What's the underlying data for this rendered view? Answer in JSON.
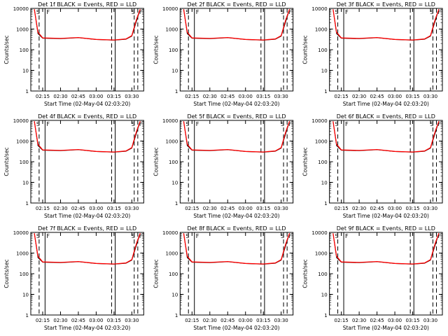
{
  "figure": {
    "ylabel": "Counts/sec",
    "xlabel": "Start Time (02-May-04 02:03:20)",
    "x_ticks": [
      "02:15",
      "02:30",
      "02:45",
      "03:00",
      "03:15",
      "03:30"
    ],
    "y_ticks": [
      "1",
      "10",
      "100",
      "1000",
      "10000"
    ],
    "marker_labels": [
      "S",
      "F",
      "S",
      "F"
    ]
  },
  "chart_data": [
    {
      "type": "line",
      "title": "Det 1f BLACK = Events, RED = LLD",
      "xlabel": "Start Time (02-May-04 02:03:20)",
      "ylabel": "Counts/sec",
      "ylog": true,
      "ylim": [
        1,
        10000
      ],
      "xlim": [
        "02:05",
        "03:40"
      ],
      "x": [
        "02:08",
        "02:11",
        "02:15",
        "02:30",
        "02:45",
        "03:00",
        "03:15",
        "03:25",
        "03:30",
        "03:34",
        "03:37"
      ],
      "series": [
        {
          "name": "Events",
          "color": "#000000",
          "values": [
            9000,
            600,
            360,
            340,
            380,
            310,
            290,
            320,
            450,
            2500,
            9000
          ]
        },
        {
          "name": "LLD",
          "color": "#ff0000",
          "values": [
            9000,
            700,
            370,
            350,
            390,
            315,
            295,
            330,
            480,
            3000,
            9000
          ]
        }
      ],
      "markers": {
        "solid": [
          "02:17",
          "03:16"
        ],
        "dashed": [
          "02:12",
          "03:13",
          "03:32",
          "03:35"
        ]
      }
    },
    {
      "type": "line",
      "title": "Det 2f BLACK = Events, RED = LLD",
      "xlabel": "Start Time (02-May-04 02:03:20)",
      "ylabel": "Counts/sec",
      "ylog": true,
      "ylim": [
        1,
        10000
      ],
      "xlim": [
        "02:05",
        "03:40"
      ],
      "x": [
        "02:08",
        "02:11",
        "02:15",
        "02:30",
        "02:45",
        "03:00",
        "03:15",
        "03:25",
        "03:30",
        "03:34",
        "03:37"
      ],
      "series": [
        {
          "name": "Events",
          "color": "#000000",
          "values": [
            9000,
            600,
            360,
            340,
            380,
            310,
            290,
            320,
            450,
            2500,
            9000
          ]
        },
        {
          "name": "LLD",
          "color": "#ff0000",
          "values": [
            9000,
            700,
            370,
            350,
            390,
            315,
            295,
            330,
            480,
            3000,
            9000
          ]
        }
      ],
      "markers": {
        "solid": [
          "02:17",
          "03:16"
        ],
        "dashed": [
          "02:12",
          "03:13",
          "03:32",
          "03:35"
        ]
      }
    },
    {
      "type": "line",
      "title": "Det 3f BLACK = Events, RED = LLD",
      "xlabel": "Start Time (02-May-04 02:03:20)",
      "ylabel": "Counts/sec",
      "ylog": true,
      "ylim": [
        1,
        10000
      ],
      "xlim": [
        "02:05",
        "03:40"
      ],
      "x": [
        "02:08",
        "02:11",
        "02:15",
        "02:30",
        "02:45",
        "03:00",
        "03:15",
        "03:25",
        "03:30",
        "03:34",
        "03:37"
      ],
      "series": [
        {
          "name": "Events",
          "color": "#000000",
          "values": [
            9000,
            600,
            360,
            340,
            380,
            310,
            290,
            320,
            450,
            2500,
            9000
          ]
        },
        {
          "name": "LLD",
          "color": "#ff0000",
          "values": [
            9000,
            700,
            370,
            350,
            390,
            315,
            295,
            330,
            480,
            3000,
            9000
          ]
        }
      ],
      "markers": {
        "solid": [
          "02:17",
          "03:16"
        ],
        "dashed": [
          "02:12",
          "03:13",
          "03:32",
          "03:35"
        ]
      }
    },
    {
      "type": "line",
      "title": "Det 4f BLACK = Events, RED = LLD",
      "xlabel": "Start Time (02-May-04 02:03:20)",
      "ylabel": "Counts/sec",
      "ylog": true,
      "ylim": [
        1,
        10000
      ],
      "xlim": [
        "02:05",
        "03:40"
      ],
      "x": [
        "02:08",
        "02:11",
        "02:15",
        "02:30",
        "02:45",
        "03:00",
        "03:15",
        "03:25",
        "03:30",
        "03:34",
        "03:37"
      ],
      "series": [
        {
          "name": "Events",
          "color": "#000000",
          "values": [
            9000,
            600,
            360,
            340,
            380,
            310,
            290,
            320,
            450,
            2500,
            9000
          ]
        },
        {
          "name": "LLD",
          "color": "#ff0000",
          "values": [
            9000,
            700,
            370,
            350,
            390,
            315,
            295,
            330,
            480,
            3000,
            9000
          ]
        }
      ],
      "markers": {
        "solid": [
          "02:17",
          "03:16"
        ],
        "dashed": [
          "02:12",
          "03:13",
          "03:32",
          "03:35"
        ]
      }
    },
    {
      "type": "line",
      "title": "Det 5f BLACK = Events, RED = LLD",
      "xlabel": "Start Time (02-May-04 02:03:20)",
      "ylabel": "Counts/sec",
      "ylog": true,
      "ylim": [
        1,
        10000
      ],
      "xlim": [
        "02:05",
        "03:40"
      ],
      "x": [
        "02:08",
        "02:11",
        "02:15",
        "02:30",
        "02:45",
        "03:00",
        "03:15",
        "03:25",
        "03:30",
        "03:34",
        "03:37"
      ],
      "series": [
        {
          "name": "Events",
          "color": "#000000",
          "values": [
            9000,
            600,
            360,
            340,
            380,
            310,
            290,
            320,
            450,
            2500,
            9000
          ]
        },
        {
          "name": "LLD",
          "color": "#ff0000",
          "values": [
            9000,
            700,
            370,
            350,
            390,
            315,
            295,
            330,
            480,
            3000,
            9000
          ]
        }
      ],
      "markers": {
        "solid": [
          "02:17",
          "03:16"
        ],
        "dashed": [
          "02:12",
          "03:13",
          "03:32",
          "03:35"
        ]
      }
    },
    {
      "type": "line",
      "title": "Det 6f BLACK = Events, RED = LLD",
      "xlabel": "Start Time (02-May-04 02:03:20)",
      "ylabel": "Counts/sec",
      "ylog": true,
      "ylim": [
        1,
        10000
      ],
      "xlim": [
        "02:05",
        "03:40"
      ],
      "x": [
        "02:08",
        "02:11",
        "02:15",
        "02:30",
        "02:45",
        "03:00",
        "03:15",
        "03:25",
        "03:30",
        "03:34",
        "03:37"
      ],
      "series": [
        {
          "name": "Events",
          "color": "#000000",
          "values": [
            9000,
            600,
            360,
            340,
            380,
            310,
            290,
            320,
            450,
            2500,
            9000
          ]
        },
        {
          "name": "LLD",
          "color": "#ff0000",
          "values": [
            9000,
            700,
            370,
            350,
            390,
            315,
            295,
            330,
            480,
            3000,
            9000
          ]
        }
      ],
      "markers": {
        "solid": [
          "02:17",
          "03:16"
        ],
        "dashed": [
          "02:12",
          "03:13",
          "03:32",
          "03:35"
        ]
      }
    },
    {
      "type": "line",
      "title": "Det 7f BLACK = Events, RED = LLD",
      "xlabel": "Start Time (02-May-04 02:03:20)",
      "ylabel": "Counts/sec",
      "ylog": true,
      "ylim": [
        1,
        10000
      ],
      "xlim": [
        "02:05",
        "03:40"
      ],
      "x": [
        "02:08",
        "02:11",
        "02:15",
        "02:30",
        "02:45",
        "03:00",
        "03:15",
        "03:25",
        "03:30",
        "03:34",
        "03:37"
      ],
      "series": [
        {
          "name": "Events",
          "color": "#000000",
          "values": [
            9000,
            600,
            360,
            340,
            380,
            310,
            290,
            320,
            450,
            2500,
            9000
          ]
        },
        {
          "name": "LLD",
          "color": "#ff0000",
          "values": [
            9000,
            700,
            370,
            350,
            390,
            315,
            295,
            330,
            480,
            3000,
            9000
          ]
        }
      ],
      "markers": {
        "solid": [
          "02:17",
          "03:16"
        ],
        "dashed": [
          "02:12",
          "03:13",
          "03:32",
          "03:35"
        ]
      }
    },
    {
      "type": "line",
      "title": "Det 8f BLACK = Events, RED = LLD",
      "xlabel": "Start Time (02-May-04 02:03:20)",
      "ylabel": "Counts/sec",
      "ylog": true,
      "ylim": [
        1,
        10000
      ],
      "xlim": [
        "02:05",
        "03:40"
      ],
      "x": [
        "02:08",
        "02:11",
        "02:15",
        "02:30",
        "02:45",
        "03:00",
        "03:15",
        "03:25",
        "03:30",
        "03:34",
        "03:37"
      ],
      "series": [
        {
          "name": "Events",
          "color": "#000000",
          "values": [
            9000,
            600,
            360,
            340,
            380,
            310,
            290,
            320,
            450,
            2500,
            9000
          ]
        },
        {
          "name": "LLD",
          "color": "#ff0000",
          "values": [
            9000,
            700,
            370,
            350,
            390,
            315,
            295,
            330,
            480,
            3000,
            9000
          ]
        }
      ],
      "markers": {
        "solid": [
          "02:17",
          "03:16"
        ],
        "dashed": [
          "02:12",
          "03:13",
          "03:32",
          "03:35"
        ]
      }
    },
    {
      "type": "line",
      "title": "Det 9f BLACK = Events, RED = LLD",
      "xlabel": "Start Time (02-May-04 02:03:20)",
      "ylabel": "Counts/sec",
      "ylog": true,
      "ylim": [
        1,
        10000
      ],
      "xlim": [
        "02:05",
        "03:40"
      ],
      "x": [
        "02:08",
        "02:11",
        "02:15",
        "02:30",
        "02:45",
        "03:00",
        "03:15",
        "03:25",
        "03:30",
        "03:34",
        "03:37"
      ],
      "series": [
        {
          "name": "Events",
          "color": "#000000",
          "values": [
            9000,
            600,
            360,
            340,
            380,
            310,
            290,
            320,
            450,
            2500,
            9000
          ]
        },
        {
          "name": "LLD",
          "color": "#ff0000",
          "values": [
            9000,
            700,
            370,
            350,
            390,
            315,
            295,
            330,
            480,
            3000,
            9000
          ]
        }
      ],
      "markers": {
        "solid": [
          "02:17",
          "03:16"
        ],
        "dashed": [
          "02:12",
          "03:13",
          "03:32",
          "03:35"
        ]
      }
    }
  ]
}
